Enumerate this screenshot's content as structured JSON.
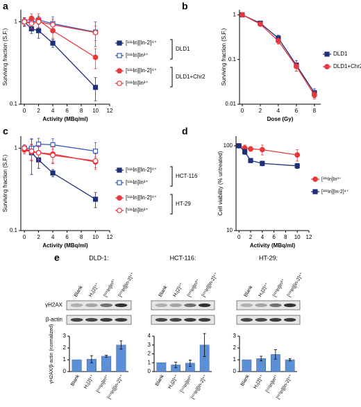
{
  "chart_data": [
    {
      "type": "line",
      "panel": "a",
      "xlabel": "Activity (MBq/ml)",
      "ylabel": "Surviving fraction (S.F.)",
      "log_y": true,
      "xlim": [
        -0.5,
        12
      ],
      "ylim": [
        0.1,
        1.4
      ],
      "xticks": [
        0,
        2,
        4,
        6,
        8,
        10,
        12
      ],
      "yticks": [
        0.1,
        1
      ],
      "groups": [
        {
          "name": "DLD1",
          "series": [
            {
              "name": "[¹¹¹In][In-2]⁴⁺",
              "color": "#1f2f7a",
              "marker": "square",
              "filled": true,
              "x": [
                0,
                1,
                2,
                4,
                10
              ],
              "values": [
                1.0,
                0.82,
                0.78,
                0.55,
                0.16
              ],
              "errors": [
                0.12,
                0.1,
                0.15,
                0.06,
                0.05
              ]
            },
            {
              "name": "[¹¹¹In]In³⁺",
              "color": "#3a5bbf",
              "marker": "square",
              "filled": false,
              "x": [
                0,
                1,
                2,
                4,
                10
              ],
              "values": [
                1.0,
                0.98,
                1.05,
                0.95,
                0.75
              ],
              "errors": [
                0.1,
                0.15,
                0.12,
                0.2,
                0.25
              ]
            }
          ]
        },
        {
          "name": "DLD1+Chr2",
          "series": [
            {
              "name": "[¹¹¹In][In-2]⁴⁺",
              "color": "#e8383d",
              "marker": "circle",
              "filled": true,
              "x": [
                0,
                1,
                2,
                4,
                10
              ],
              "values": [
                1.0,
                1.1,
                1.05,
                0.78,
                0.37
              ],
              "errors": [
                0.1,
                0.15,
                0.2,
                0.15,
                0.1
              ]
            },
            {
              "name": "[¹¹¹In]In³⁺",
              "color": "#e8383d",
              "marker": "circle",
              "filled": false,
              "x": [
                0,
                1,
                2,
                4,
                10
              ],
              "values": [
                1.0,
                0.95,
                1.0,
                0.92,
                0.74
              ],
              "errors": [
                0.1,
                0.12,
                0.15,
                0.15,
                0.15
              ]
            }
          ]
        }
      ]
    },
    {
      "type": "line",
      "panel": "b",
      "xlabel": "Dose (Gy)",
      "ylabel": "Surviving fraction (S.F.)",
      "log_y": true,
      "xlim": [
        -0.3,
        8.7
      ],
      "ylim": [
        0.01,
        1.3
      ],
      "xticks": [
        0,
        2,
        4,
        6,
        8
      ],
      "yticks": [
        0.01,
        0.1,
        1
      ],
      "series": [
        {
          "name": "DLD1",
          "color": "#1f2f7a",
          "marker": "square",
          "filled": true,
          "x": [
            0,
            2,
            4,
            6,
            8
          ],
          "values": [
            1.0,
            0.65,
            0.3,
            0.075,
            0.018
          ],
          "errors": [
            0.02,
            0.05,
            0.05,
            0.02,
            0.004
          ]
        },
        {
          "name": "DLD1+Chr2",
          "color": "#e8383d",
          "marker": "circle",
          "filled": true,
          "x": [
            0,
            2,
            4,
            6,
            8
          ],
          "values": [
            1.0,
            0.62,
            0.26,
            0.07,
            0.016
          ],
          "errors": [
            0.02,
            0.05,
            0.04,
            0.015,
            0.003
          ]
        }
      ]
    },
    {
      "type": "line",
      "panel": "c",
      "xlabel": "Activity (MBq/ml)",
      "ylabel": "Surviving fraction (S.F.)",
      "log_y": true,
      "xlim": [
        -0.5,
        12
      ],
      "ylim": [
        0.1,
        1.4
      ],
      "xticks": [
        0,
        2,
        4,
        6,
        8,
        10,
        12
      ],
      "yticks": [
        0.1,
        1
      ],
      "groups": [
        {
          "name": "HCT-116",
          "series": [
            {
              "name": "[¹¹¹In][In-2]⁴⁺",
              "color": "#1f2f7a",
              "marker": "square",
              "filled": true,
              "x": [
                0,
                1,
                2,
                4,
                10
              ],
              "values": [
                1.0,
                0.88,
                0.72,
                0.5,
                0.24
              ],
              "errors": [
                0.1,
                0.4,
                0.15,
                0.05,
                0.05
              ]
            },
            {
              "name": "[¹¹¹In]In³⁺",
              "color": "#3a5bbf",
              "marker": "square",
              "filled": false,
              "x": [
                0,
                1,
                2,
                4,
                10
              ],
              "values": [
                1.0,
                1.0,
                1.12,
                1.1,
                0.92
              ],
              "errors": [
                0.1,
                0.3,
                0.2,
                0.2,
                0.25
              ]
            }
          ]
        },
        {
          "name": "HT-29",
          "series": [
            {
              "name": "[¹¹¹In][In-2]⁴⁺",
              "color": "#e8383d",
              "marker": "circle",
              "filled": true,
              "x": [
                0,
                1,
                2,
                4,
                10
              ],
              "values": [
                0.95,
                0.9,
                0.88,
                0.85,
                0.68
              ],
              "errors": [
                0.1,
                0.2,
                0.15,
                0.2,
                0.1
              ]
            },
            {
              "name": "[¹¹¹In]In³⁺",
              "color": "#e8383d",
              "marker": "circle",
              "filled": false,
              "x": [
                0,
                1,
                2,
                4,
                10
              ],
              "values": [
                1.0,
                0.92,
                0.88,
                0.82,
                0.7
              ],
              "errors": [
                0.1,
                0.2,
                0.2,
                0.15,
                0.15
              ]
            }
          ]
        }
      ]
    },
    {
      "type": "line",
      "panel": "d",
      "xlabel": "Activity (MBq/ml)",
      "ylabel": "Cell viability (% untreated)",
      "log_y": true,
      "xlim": [
        -0.5,
        12
      ],
      "ylim": [
        10,
        130
      ],
      "xticks": [
        0,
        2,
        4,
        6,
        8,
        10,
        12
      ],
      "yticks": [
        10,
        100
      ],
      "series": [
        {
          "name": "[¹¹¹In]In³⁺",
          "color": "#e8383d",
          "marker": "circle",
          "filled": true,
          "x": [
            0,
            1,
            2,
            4,
            10
          ],
          "values": [
            100,
            94,
            92,
            90,
            78
          ],
          "errors": [
            6,
            8,
            6,
            12,
            12
          ]
        },
        {
          "name": "[¹¹¹In][In-2]⁴⁺",
          "color": "#1f2f7a",
          "marker": "square",
          "filled": true,
          "x": [
            0,
            1,
            2,
            4,
            10
          ],
          "values": [
            100,
            85,
            67,
            62,
            58
          ],
          "errors": [
            5,
            6,
            4,
            4,
            4
          ]
        }
      ]
    },
    {
      "type": "bar",
      "panel": "e",
      "title": "DLD-1:",
      "blot_labels": [
        "γH2AX",
        "β-actin"
      ],
      "ylabel": "γH2AX/β-actin (normalized)",
      "categories": [
        "Blank",
        "H₂[2]⁴⁺",
        "[¹¹¹In]In³⁺",
        "[¹¹¹In][In-2]⁴⁺"
      ],
      "values": [
        1.0,
        1.05,
        1.3,
        2.25
      ],
      "errors": [
        0,
        0.3,
        0.08,
        0.35
      ],
      "color": "#5b8fd6",
      "ylim": [
        0,
        3
      ],
      "yticks": [
        0,
        1,
        2,
        3
      ]
    },
    {
      "type": "bar",
      "title": "HCT-116:",
      "categories": [
        "Blank",
        "H₂[2]⁴⁺",
        "[¹¹¹In]In³⁺",
        "[¹¹¹In][In-2]⁴⁺"
      ],
      "values": [
        1.0,
        0.75,
        0.95,
        3.0
      ],
      "errors": [
        0,
        0.3,
        0.35,
        1.3
      ],
      "color": "#5b8fd6",
      "ylim": [
        0,
        4
      ],
      "yticks": [
        0,
        1,
        2,
        3,
        4
      ]
    },
    {
      "type": "bar",
      "title": "HT-29:",
      "categories": [
        "Blank",
        "H₂[2]⁴⁺",
        "[¹¹¹In]In³⁺",
        "[¹¹¹In][In-2]⁴⁺"
      ],
      "values": [
        1.0,
        1.1,
        1.45,
        1.0
      ],
      "errors": [
        0,
        0.2,
        0.4,
        0.1
      ],
      "color": "#5b8fd6",
      "ylim": [
        0,
        3
      ],
      "yticks": [
        0,
        1,
        2,
        3
      ]
    }
  ]
}
